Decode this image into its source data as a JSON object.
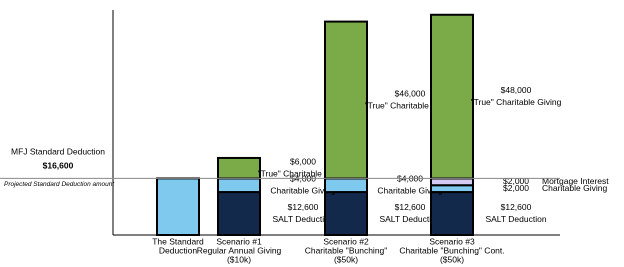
{
  "chart_data": {
    "type": "stacked-bar",
    "categories": [
      [
        "The Standard",
        "Deduction"
      ],
      [
        "Scenario #1",
        "Regular Annual Giving",
        "($10k)"
      ],
      [
        "Scenario #2",
        "Charitable \"Bunching\"",
        "($50k)"
      ],
      [
        "Scenario #3",
        "Charitable \"Bunching\" Cont.",
        "($50k)"
      ]
    ],
    "series": [
      {
        "name": "MFJ Standard Deduction",
        "color": "#7fc8ee",
        "label_position": "left",
        "values": [
          16600,
          null,
          null,
          null
        ],
        "value_labels": [
          "$16,600",
          null,
          null,
          null
        ]
      },
      {
        "name": "SALT Deduction",
        "color": "#13294b",
        "values": [
          null,
          12600,
          12600,
          12600
        ],
        "value_labels": [
          null,
          "$12,600",
          "$12,600",
          "$12,600"
        ]
      },
      {
        "name": "Charitable Giving",
        "color": "#7fc8ee",
        "values": [
          null,
          4000,
          4000,
          2000
        ],
        "value_labels": [
          null,
          "$4,000",
          "$4,000",
          "$2,000"
        ]
      },
      {
        "name": "Mortgage Interest",
        "color": "#d5cbf2",
        "values": [
          null,
          null,
          null,
          2000
        ],
        "value_labels": [
          null,
          null,
          null,
          "$2,000"
        ]
      },
      {
        "name": "\"True\" Charitable Giving",
        "color": "#7aab48",
        "values": [
          null,
          6000,
          46000,
          48000
        ],
        "value_labels": [
          null,
          "$6,000",
          "$46,000",
          "$48,000"
        ]
      }
    ],
    "reference_line": {
      "label": "Projected Standard Deduction amount",
      "value": 16600
    },
    "ylim": [
      0,
      66000
    ]
  }
}
